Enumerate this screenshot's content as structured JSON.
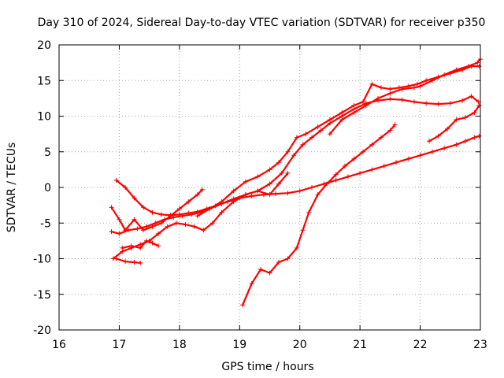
{
  "chart_data": {
    "type": "scatter",
    "title": "Day 310 of 2024, Sidereal Day-to-day VTEC variation (SDTVAR) for receiver p350",
    "xlabel": "GPS time / hours",
    "ylabel": "SDTVAR / TECUs",
    "xlim": [
      16,
      23
    ],
    "ylim": [
      -20,
      20
    ],
    "xticks": [
      16,
      17,
      18,
      19,
      20,
      21,
      22,
      23
    ],
    "yticks": [
      -20,
      -15,
      -10,
      -5,
      0,
      5,
      10,
      15,
      20
    ],
    "grid": true,
    "legend": "none",
    "marker": "plus",
    "color": "#ff0000",
    "series": [
      {
        "x": [
          16.95,
          17.1,
          17.25,
          17.4,
          17.55,
          17.7,
          17.85,
          18.0,
          18.15,
          18.3,
          18.45,
          18.6,
          18.8,
          19.0,
          19.2,
          19.4,
          19.6,
          19.8,
          20.0,
          20.2,
          20.4,
          20.6,
          20.8,
          21.0,
          21.2,
          21.4,
          21.6,
          21.8,
          22.0,
          22.2,
          22.4,
          22.6,
          22.75,
          22.9,
          22.98
        ],
        "y": [
          1.0,
          0.0,
          -1.5,
          -2.8,
          -3.5,
          -3.8,
          -3.9,
          -3.8,
          -3.6,
          -3.4,
          -3.0,
          -2.6,
          -2.0,
          -1.5,
          -1.2,
          -1.0,
          -0.9,
          -0.8,
          -0.5,
          0.0,
          0.5,
          1.0,
          1.5,
          2.0,
          2.5,
          3.0,
          3.5,
          4.0,
          4.5,
          5.0,
          5.5,
          6.0,
          6.5,
          7.0,
          7.2
        ]
      },
      {
        "x": [
          16.87,
          17.0,
          17.1,
          17.25,
          17.4,
          17.55,
          17.7,
          17.85,
          18.0,
          18.15,
          18.3,
          18.38
        ],
        "y": [
          -2.8,
          -4.5,
          -6.0,
          -4.5,
          -6.0,
          -5.5,
          -5.0,
          -4.0,
          -3.0,
          -2.0,
          -1.0,
          -0.3
        ]
      },
      {
        "x": [
          16.87,
          17.0,
          17.15,
          17.3,
          17.45,
          17.6,
          17.75,
          17.9,
          18.05,
          18.2,
          18.35,
          18.5,
          18.7,
          18.9,
          19.1,
          19.3,
          19.5,
          19.7,
          19.9,
          20.05,
          20.2,
          20.35,
          20.5,
          20.7,
          20.9,
          21.1,
          21.3,
          21.5,
          21.7,
          21.9,
          22.1,
          22.3,
          22.5,
          22.7,
          22.85,
          22.97
        ],
        "y": [
          -6.2,
          -6.5,
          -6.0,
          -5.8,
          -5.5,
          -5.0,
          -4.5,
          -4.2,
          -4.0,
          -3.8,
          -3.5,
          -3.0,
          -2.3,
          -1.6,
          -1.0,
          -0.5,
          0.5,
          2.0,
          4.5,
          6.0,
          7.0,
          8.0,
          9.0,
          10.0,
          11.0,
          11.8,
          12.2,
          12.4,
          12.3,
          12.0,
          11.8,
          11.7,
          11.8,
          12.2,
          12.8,
          12.0
        ]
      },
      {
        "x": [
          16.9,
          17.05,
          17.2,
          17.35,
          17.5,
          17.65,
          17.8,
          17.95,
          18.1,
          18.25,
          18.4,
          18.55,
          18.7,
          18.9,
          19.1,
          19.3,
          19.5,
          19.65,
          19.8
        ],
        "y": [
          -10.0,
          -9.0,
          -8.5,
          -8.0,
          -7.5,
          -6.5,
          -5.5,
          -5.0,
          -5.2,
          -5.5,
          -6.0,
          -5.0,
          -3.5,
          -2.0,
          -1.0,
          -0.5,
          -1.0,
          0.5,
          2.0
        ]
      },
      {
        "x": [
          16.95,
          17.1,
          17.25,
          17.35
        ],
        "y": [
          -10.0,
          -10.4,
          -10.5,
          -10.6
        ]
      },
      {
        "x": [
          17.05,
          17.2,
          17.35,
          17.45,
          17.55,
          17.65
        ],
        "y": [
          -8.5,
          -8.2,
          -8.5,
          -7.5,
          -7.8,
          -8.2
        ]
      },
      {
        "x": [
          18.3,
          18.5,
          18.7,
          18.9,
          19.1,
          19.3,
          19.5,
          19.65,
          19.8,
          19.95,
          20.1,
          20.3,
          20.5,
          20.7,
          20.9,
          21.05,
          21.2,
          21.35,
          21.5,
          21.65,
          21.8,
          21.95,
          22.1,
          22.3,
          22.5,
          22.7,
          22.85,
          22.98
        ],
        "y": [
          -4.0,
          -3.0,
          -2.0,
          -0.5,
          0.8,
          1.5,
          2.5,
          3.5,
          5.0,
          7.0,
          7.5,
          8.5,
          9.5,
          10.5,
          11.5,
          12.0,
          14.5,
          14.0,
          13.8,
          14.0,
          14.2,
          14.5,
          15.0,
          15.5,
          16.0,
          16.5,
          17.0,
          17.0
        ]
      },
      {
        "x": [
          19.05,
          19.2,
          19.35,
          19.5,
          19.65,
          19.8,
          19.95,
          20.05,
          20.15,
          20.3,
          20.45,
          20.6,
          20.75,
          20.9,
          21.05,
          21.2,
          21.35,
          21.5,
          21.58
        ],
        "y": [
          -16.5,
          -13.5,
          -11.5,
          -12.0,
          -10.5,
          -10.0,
          -8.5,
          -6.0,
          -3.5,
          -1.0,
          0.5,
          1.8,
          3.0,
          4.0,
          5.0,
          6.0,
          7.0,
          8.0,
          8.8
        ]
      },
      {
        "x": [
          20.5,
          20.7,
          20.9,
          21.1,
          21.3,
          21.5,
          21.7,
          21.9,
          22.0,
          22.2,
          22.4,
          22.6,
          22.8,
          22.95,
          23.0
        ],
        "y": [
          7.5,
          9.5,
          10.5,
          11.5,
          12.5,
          13.2,
          13.8,
          14.0,
          14.2,
          15.0,
          15.8,
          16.5,
          17.0,
          17.5,
          18.0
        ]
      },
      {
        "x": [
          22.15,
          22.3,
          22.45,
          22.6,
          22.75,
          22.9,
          22.98
        ],
        "y": [
          6.5,
          7.2,
          8.2,
          9.5,
          9.8,
          10.5,
          11.5
        ]
      }
    ]
  }
}
